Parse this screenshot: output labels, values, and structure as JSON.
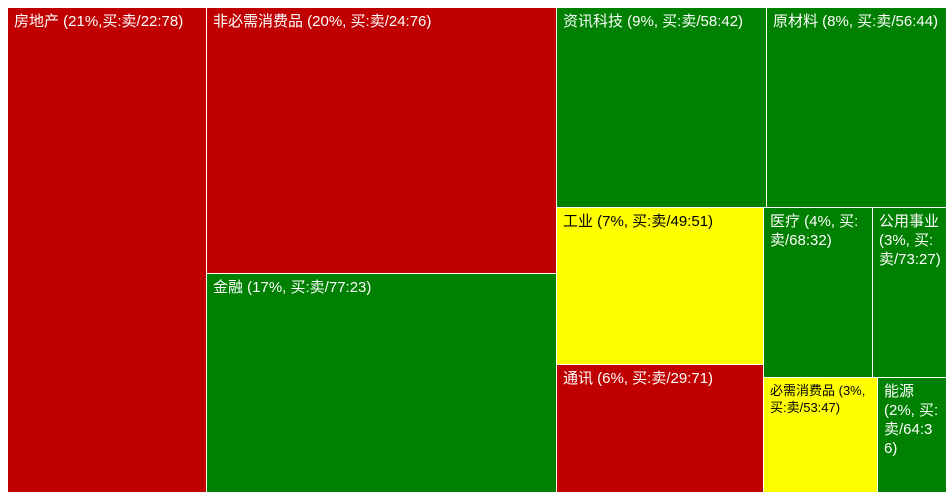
{
  "chart_data": {
    "type": "treemap",
    "metric": "买:卖",
    "colors": {
      "red": "#c00000",
      "green": "#008000",
      "yellow": "#ffff00"
    },
    "sectors": [
      {
        "name": "房地产",
        "weight_pct": 21,
        "buy_sell": "22:78",
        "color": "red",
        "label": "房地产 (21%,买:卖/22:78)"
      },
      {
        "name": "非必需消费品",
        "weight_pct": 20,
        "buy_sell": "24:76",
        "color": "red",
        "label": "非必需消费品 (20%, 买:卖/24:76)"
      },
      {
        "name": "金融",
        "weight_pct": 17,
        "buy_sell": "77:23",
        "color": "green",
        "label": "金融 (17%, 买:卖/77:23)"
      },
      {
        "name": "资讯科技",
        "weight_pct": 9,
        "buy_sell": "58:42",
        "color": "green",
        "label": "资讯科技 (9%, 买:卖/58:42)"
      },
      {
        "name": "原材料",
        "weight_pct": 8,
        "buy_sell": "56:44",
        "color": "green",
        "label": "原材料 (8%, 买:卖/56:44)"
      },
      {
        "name": "工业",
        "weight_pct": 7,
        "buy_sell": "49:51",
        "color": "yellow",
        "label": "工业 (7%, 买:卖/49:51)"
      },
      {
        "name": "医疗",
        "weight_pct": 4,
        "buy_sell": "68:32",
        "color": "green",
        "label": "医疗 (4%, 买:卖/68:32)"
      },
      {
        "name": "公用事业",
        "weight_pct": 3,
        "buy_sell": "73:27",
        "color": "green",
        "label": "公用事业 (3%, 买:卖/73:27)"
      },
      {
        "name": "通讯",
        "weight_pct": 6,
        "buy_sell": "29:71",
        "color": "red",
        "label": "通讯 (6%, 买:卖/29:71)"
      },
      {
        "name": "必需消费品",
        "weight_pct": 3,
        "buy_sell": "53:47",
        "color": "yellow",
        "label": "必需消费品 (3%, 买:卖/53:47)"
      },
      {
        "name": "能源",
        "weight_pct": 2,
        "buy_sell": "64:36",
        "color": "green",
        "label": "能源 (2%, 买:卖/64:36)"
      }
    ]
  }
}
